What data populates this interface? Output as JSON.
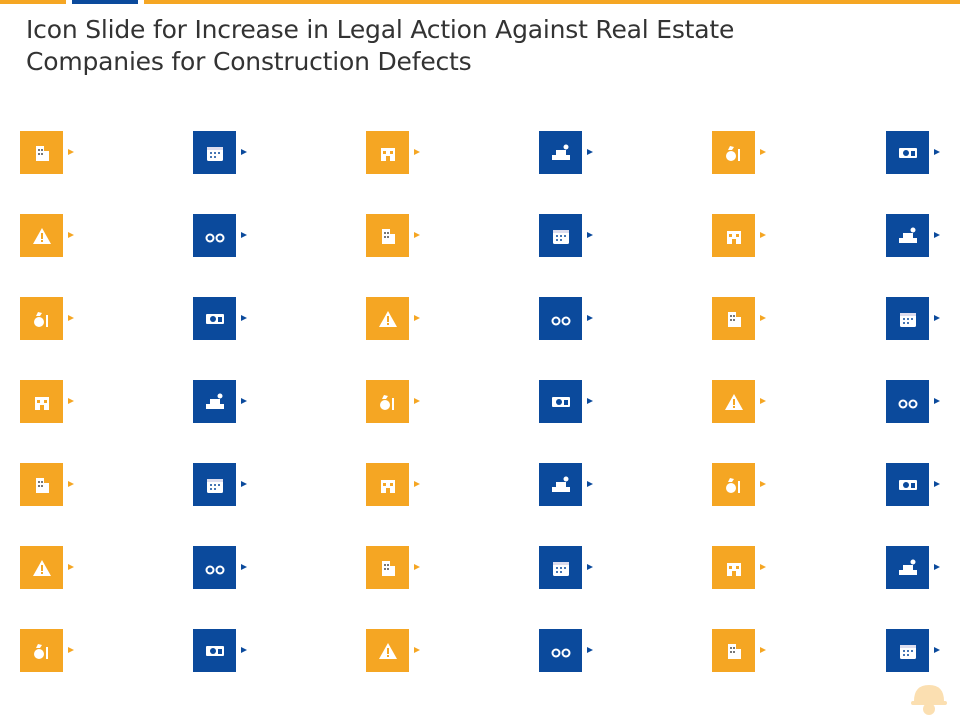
{
  "slide": {
    "title_line1": "Icon Slide for Increase in Legal Action Against Real Estate",
    "title_line2": "Companies for Construction Defects"
  },
  "colors": {
    "yellow": "#f5a623",
    "blue": "#0b4a9c",
    "icon_fg": "#ffffff",
    "title_text": "#333333"
  },
  "grid": {
    "rows": 7,
    "cols": 6,
    "icons": [
      [
        "office-building-icon",
        "calendar-icon",
        "building-block-icon",
        "real-estate-desk-icon",
        "money-bag-icon",
        "cash-icon"
      ],
      [
        "warning-icon",
        "binoculars-icon",
        "person-question-icon",
        "hand-growth-icon",
        "bar-growth-icon",
        "hand-gear-icon"
      ],
      [
        "cost-network-icon",
        "snowflake-network-icon",
        "tower-icon",
        "city-factory-icon",
        "engineer-icon",
        "clipboard-icon"
      ],
      [
        "team-hierarchy-icon",
        "org-chart-icon",
        "buildings-icon",
        "document-list-icon",
        "brain-gear-icon",
        "pipe-icon"
      ],
      [
        "surveyor-icon",
        "flex-arm-icon",
        "bridge-icon",
        "door-panel-icon",
        "head-idea-icon",
        "worker-ladder-icon"
      ],
      [
        "couple-icon",
        "flyer-stack-icon",
        "building-crane-icon",
        "construction-worker-icon",
        "growth-people-icon",
        "window-frame-icon"
      ],
      [
        "apartment-icon",
        "group-meeting-icon",
        "hard-hat-worker-icon",
        "document-chart-icon",
        "magnifier-chart-icon",
        "tools-icon"
      ]
    ],
    "tile_colors": [
      [
        "yellow",
        "blue",
        "yellow",
        "blue",
        "yellow",
        "blue"
      ],
      [
        "yellow",
        "blue",
        "yellow",
        "blue",
        "yellow",
        "blue"
      ],
      [
        "yellow",
        "blue",
        "yellow",
        "blue",
        "yellow",
        "blue"
      ],
      [
        "yellow",
        "blue",
        "yellow",
        "blue",
        "yellow",
        "blue"
      ],
      [
        "yellow",
        "blue",
        "yellow",
        "blue",
        "yellow",
        "blue"
      ],
      [
        "yellow",
        "blue",
        "yellow",
        "blue",
        "yellow",
        "blue"
      ],
      [
        "yellow",
        "blue",
        "yellow",
        "blue",
        "yellow",
        "blue"
      ]
    ]
  }
}
